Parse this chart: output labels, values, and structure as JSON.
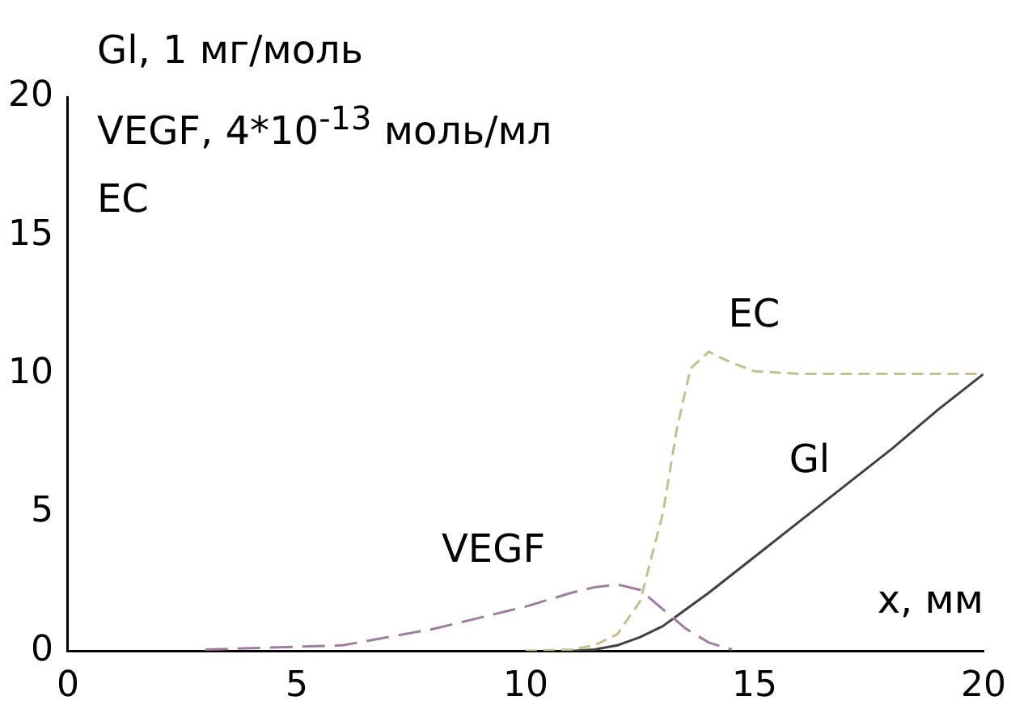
{
  "chart_data": {
    "type": "line",
    "annotations": [
      "Gl, 1 мг/моль",
      "VEGF, 4*10$^{-13}$ моль/мл",
      "EC"
    ],
    "xlabel": "x, мм",
    "xlim": [
      0,
      20
    ],
    "xticks": [
      0,
      5,
      10,
      15,
      20
    ],
    "ylim": [
      0,
      20
    ],
    "yticks": [
      0,
      5,
      10,
      15,
      20
    ],
    "marker": "none",
    "series": [
      {
        "name": "VEGF",
        "color": "#a07ca0",
        "line_style": "dashed",
        "x": [
          3,
          5,
          6,
          7,
          8,
          9,
          10,
          11,
          11.5,
          12,
          12.5,
          13,
          13.5,
          14,
          14.5
        ],
        "values": [
          0.05,
          0.15,
          0.2,
          0.5,
          0.8,
          1.2,
          1.6,
          2.1,
          2.3,
          2.4,
          2.2,
          1.5,
          0.8,
          0.3,
          0.05
        ]
      },
      {
        "name": "EC",
        "color": "#c4c08c",
        "line_style": "dashed",
        "x": [
          10,
          11,
          11.5,
          12,
          12.5,
          13,
          13.3,
          13.6,
          14,
          14.5,
          15,
          16,
          20
        ],
        "values": [
          0,
          0.05,
          0.2,
          0.6,
          1.8,
          5,
          8,
          10.2,
          10.8,
          10.4,
          10.1,
          10,
          10
        ]
      },
      {
        "name": "Gl",
        "color": "#404040",
        "line_style": "solid",
        "x": [
          11,
          11.5,
          12,
          12.5,
          13,
          13.5,
          14,
          15,
          16,
          17,
          18,
          19,
          20
        ],
        "values": [
          0,
          0.05,
          0.2,
          0.5,
          0.9,
          1.5,
          2.1,
          3.4,
          4.7,
          6.0,
          7.3,
          8.7,
          10
        ]
      }
    ]
  }
}
